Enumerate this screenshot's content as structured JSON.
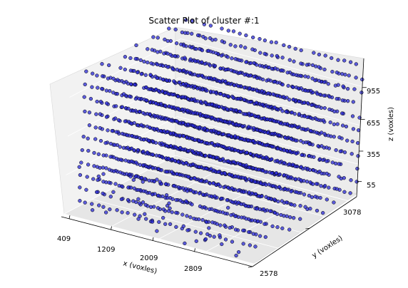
{
  "chart_data": {
    "type": "scatter",
    "dims": "3d",
    "title": "Scatter Plot of cluster #:1",
    "xlabel": "x (voxles)",
    "ylabel": "y (voxles)",
    "zlabel": "z (voxles)",
    "x_ticks": [
      "409",
      "1209",
      "2009",
      "2809"
    ],
    "y_ticks": [
      "2578",
      "3078"
    ],
    "z_ticks": [
      "55",
      "355",
      "655",
      "955"
    ],
    "xlim": [
      409,
      3609
    ],
    "ylim": [
      2578,
      3578
    ],
    "zlim": [
      55,
      1255
    ],
    "grid": true,
    "marker_color": "#2a2ad6",
    "marker_edge": "#000000",
    "series": [
      {
        "description": "dense point grid: x 409–3609 step ~100, y 2578–3578 step ~50, z 55–1255 step 100 (approximate; points drawn in rows)"
      }
    ]
  }
}
